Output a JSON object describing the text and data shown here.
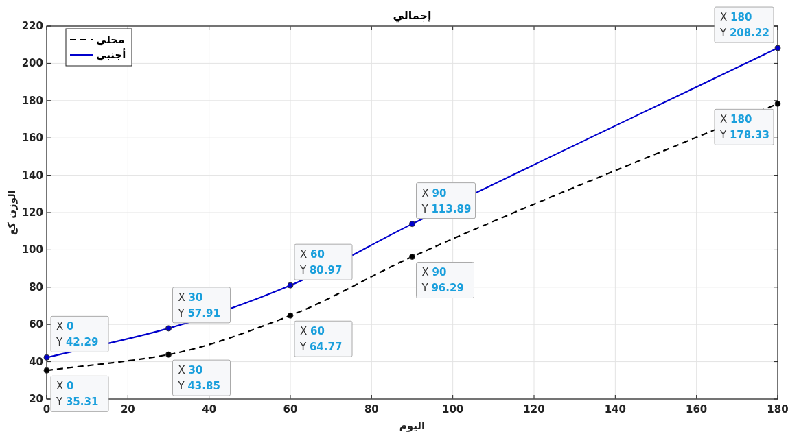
{
  "chart_data": {
    "type": "line",
    "title": "إجمالي",
    "xlabel": "اليوم",
    "ylabel": "الوزن كغ",
    "x": [
      0,
      30,
      60,
      90,
      180
    ],
    "series": [
      {
        "name": "محلي",
        "color": "#000000",
        "line_style": "dashed",
        "values": [
          35.31,
          43.85,
          64.77,
          96.29,
          178.33
        ]
      },
      {
        "name": "أجنبي",
        "color": "#0000cc",
        "line_style": "solid",
        "values": [
          42.29,
          57.91,
          80.97,
          113.89,
          208.22
        ]
      }
    ],
    "xlim": [
      0,
      180
    ],
    "xticks": [
      0,
      20,
      40,
      60,
      80,
      100,
      120,
      140,
      160,
      180
    ],
    "ylim": [
      20,
      220
    ],
    "yticks": [
      20,
      40,
      60,
      80,
      100,
      120,
      140,
      160,
      180,
      200,
      220
    ],
    "grid": true,
    "legend": "top left",
    "marker": "circle",
    "annotations": [
      {
        "text": "X 0\nY 35.31",
        "x": 0,
        "y": 35.31
      },
      {
        "text": "X 30\nY 43.85",
        "x": 30,
        "y": 43.85
      },
      {
        "text": "X 60\nY 64.77",
        "x": 60,
        "y": 64.77
      },
      {
        "text": "X 90\nY 96.29",
        "x": 90,
        "y": 96.29
      },
      {
        "text": "X 180\nY 178.33",
        "x": 180,
        "y": 178.33
      },
      {
        "text": "X 0\nY 42.29",
        "x": 0,
        "y": 42.29
      },
      {
        "text": "X 30\nY 57.91",
        "x": 30,
        "y": 57.91
      },
      {
        "text": "X 60\nY 80.97",
        "x": 60,
        "y": 80.97
      },
      {
        "text": "X 90\nY 113.89",
        "x": 90,
        "y": 113.89
      },
      {
        "text": "X 180\nY 208.22",
        "x": 180,
        "y": 208.22
      }
    ]
  }
}
